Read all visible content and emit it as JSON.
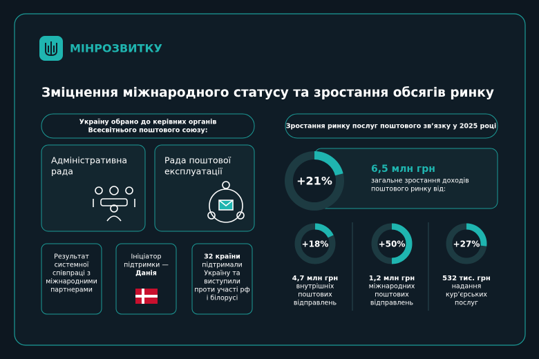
{
  "header": {
    "logo_text": "МІНРОЗВИТКУ"
  },
  "title": "Зміцнення міжнародного статусу та зростання обсягів ринку",
  "left": {
    "heading": [
      "Україну обрано до керівних органів",
      "Всесвітнього поштового союзу:"
    ],
    "bodies": [
      [
        "Адміністративна",
        "рада"
      ],
      [
        "Рада поштової",
        "експлуатації"
      ]
    ],
    "facts": [
      {
        "lines": [
          "Результат",
          "системної",
          "співпраці з",
          "міжнародними",
          "партнерами"
        ]
      },
      {
        "lines": [
          "Ініціатор",
          "підтримки —"
        ],
        "strong": "Данія"
      },
      {
        "strong": "32 країни",
        "lines": [
          "підтримали",
          "Україну та",
          "виступили",
          "проти участі рф",
          "і білорусі"
        ]
      }
    ]
  },
  "right": {
    "heading": "Зростання ринку послуг поштового зв’язку у 2025 році",
    "total": {
      "growth": {
        "value": 21,
        "label": "+21%"
      },
      "amount": "6,5 млн грн",
      "description": [
        "загальне зростання доходів",
        "поштового ринку від:"
      ]
    },
    "segments": [
      {
        "growth": {
          "value": 18,
          "label": "+18%"
        },
        "amount": "4,7 млн грн",
        "description": [
          "внутрішніх",
          "поштових",
          "відправлень"
        ]
      },
      {
        "growth": {
          "value": 50,
          "label": "+50%"
        },
        "amount": "1,2 млн грн",
        "description": [
          "міжнародних",
          "поштових",
          "відправлень"
        ]
      },
      {
        "growth": {
          "value": 27,
          "label": "+27%"
        },
        "amount": "532 тис. грн",
        "description": [
          "надання",
          "кур’єрських",
          "послуг"
        ]
      }
    ]
  }
}
